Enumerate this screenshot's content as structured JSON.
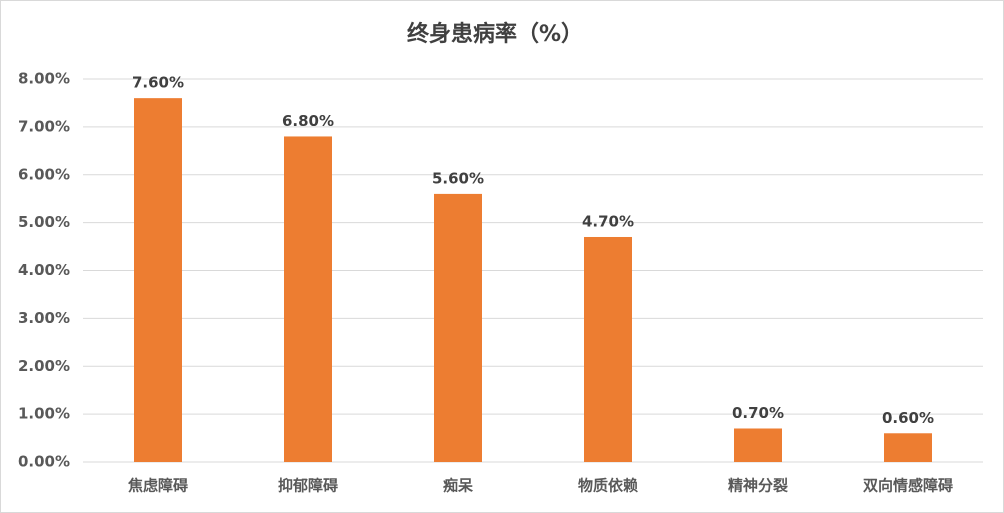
{
  "chart_data": {
    "type": "bar",
    "title": "终身患病率（%）",
    "categories": [
      "焦虑障碍",
      "抑郁障碍",
      "痴呆",
      "物质依赖",
      "精神分裂",
      "双向情感障碍"
    ],
    "values": [
      7.6,
      6.8,
      5.6,
      4.7,
      0.7,
      0.6
    ],
    "value_labels": [
      "7.60%",
      "6.80%",
      "5.60%",
      "4.70%",
      "0.70%",
      "0.60%"
    ],
    "color": "#ed7d31",
    "ylim": [
      0,
      8
    ],
    "yticks": [
      {
        "value": 0,
        "label": "0.00%"
      },
      {
        "value": 1,
        "label": "1.00%"
      },
      {
        "value": 2,
        "label": "2.00%"
      },
      {
        "value": 3,
        "label": "3.00%"
      },
      {
        "value": 4,
        "label": "4.00%"
      },
      {
        "value": 5,
        "label": "5.00%"
      },
      {
        "value": 6,
        "label": "6.00%"
      },
      {
        "value": 7,
        "label": "7.00%"
      },
      {
        "value": 8,
        "label": "8.00%"
      }
    ],
    "grid": true
  }
}
